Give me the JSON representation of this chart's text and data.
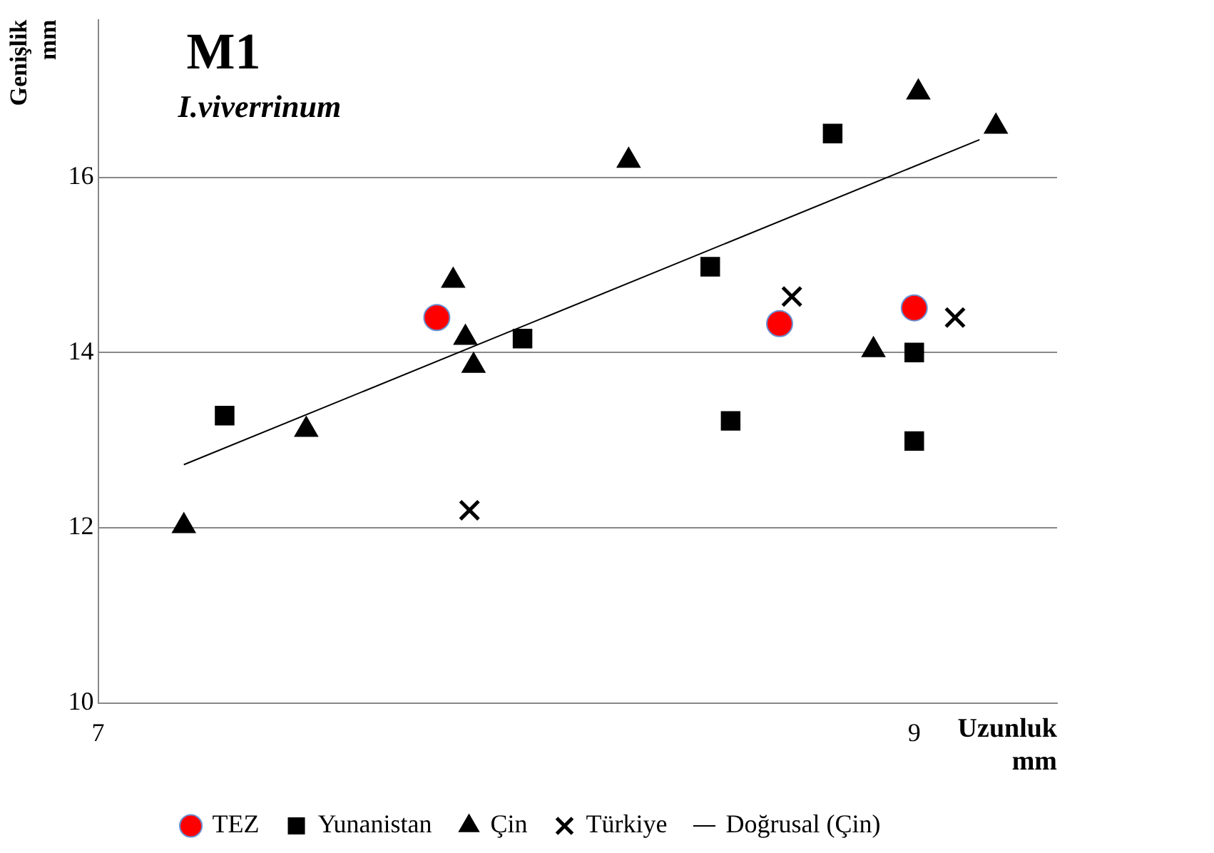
{
  "chart_data": {
    "type": "scatter",
    "title": "M1",
    "subtitle": "I.viverrinum",
    "xlabel": "Uzunluk mm",
    "ylabel": "Genişlik mm",
    "xlim": [
      7,
      9.35
    ],
    "ylim": [
      10,
      17.8
    ],
    "xticks": [
      7,
      9
    ],
    "yticks": [
      10,
      12,
      14,
      16
    ],
    "grid": "y",
    "legend": "bottom",
    "series": [
      {
        "name": "TEZ",
        "color": "#ff0000",
        "marker": "circle",
        "x": [
          7.83,
          8.67,
          9.0
        ],
        "values": [
          14.4,
          14.33,
          14.51
        ]
      },
      {
        "name": "Yunanistan",
        "color": "#000000",
        "marker": "square",
        "x": [
          7.31,
          8.04,
          8.5,
          8.55,
          8.8,
          9.0,
          9.0
        ],
        "values": [
          13.28,
          14.16,
          14.98,
          13.22,
          16.5,
          14.0,
          12.99
        ]
      },
      {
        "name": "Çin",
        "color": "#000000",
        "marker": "triangle",
        "x": [
          7.21,
          7.51,
          7.87,
          7.9,
          7.92,
          8.3,
          8.9,
          9.01,
          9.2
        ],
        "values": [
          12.02,
          13.12,
          14.82,
          14.17,
          13.85,
          16.19,
          14.03,
          16.97,
          16.58
        ]
      },
      {
        "name": "Türkiye",
        "color": "#000000",
        "marker": "cross",
        "x": [
          7.91,
          8.7,
          9.1
        ],
        "values": [
          12.2,
          14.64,
          14.4
        ]
      },
      {
        "name": "Doğrusal (Çin)",
        "type": "line",
        "color": "#000000",
        "marker": "none",
        "x": [
          7.21,
          9.16
        ],
        "values": [
          12.72,
          16.43
        ]
      }
    ]
  }
}
